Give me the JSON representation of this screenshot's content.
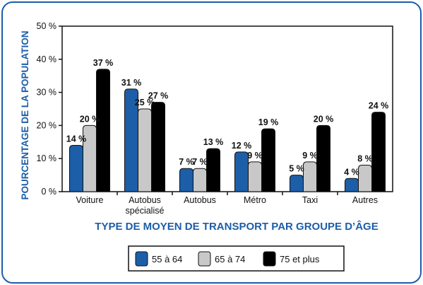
{
  "chart_data": {
    "type": "bar",
    "title": "",
    "xlabel": "TYPE DE MOYEN DE TRANSPORT PAR GROUPE D’ÂGE",
    "ylabel": "POURCENTAGE DE LA POPULATION",
    "ylim": [
      0,
      50
    ],
    "yticks": [
      "0 %",
      "10 %",
      "20 %",
      "30 %",
      "40 %",
      "50 %"
    ],
    "grid": false,
    "legend_position": "bottom",
    "categories": [
      [
        "Voiture"
      ],
      [
        "Autobus",
        "spécialisé"
      ],
      [
        "Autobus"
      ],
      [
        "Métro"
      ],
      [
        "Taxi"
      ],
      [
        "Autres"
      ]
    ],
    "series": [
      {
        "name": "55 à 64",
        "color": "#1d5ea8",
        "values": [
          14,
          31,
          7,
          12,
          5,
          4
        ],
        "labels": [
          "14 %",
          "31 %",
          "7 %",
          "12 %",
          "5 %",
          "4 %"
        ]
      },
      {
        "name": "65 à 74",
        "color": "#c8c8c8",
        "values": [
          20,
          25,
          7,
          9,
          9,
          8
        ],
        "labels": [
          "20 %",
          "25 %",
          "7 %",
          "9 %",
          "9 %",
          "8 %"
        ]
      },
      {
        "name": "75 et plus",
        "color": "#000000",
        "values": [
          37,
          27,
          13,
          19,
          20,
          24
        ],
        "labels": [
          "37 %",
          "27 %",
          "13 %",
          "19 %",
          "20 %",
          "24 %"
        ]
      }
    ]
  }
}
